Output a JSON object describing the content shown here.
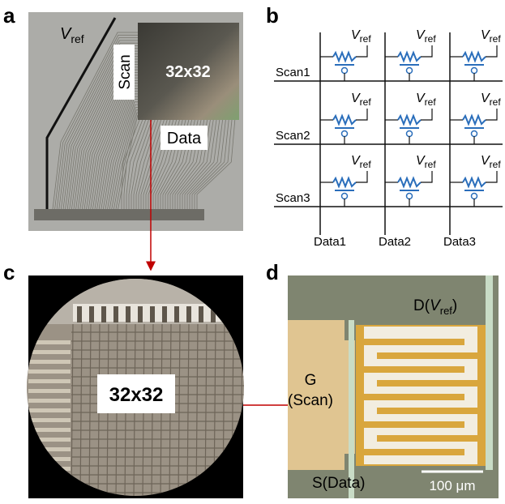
{
  "panels": {
    "a": {
      "label": "a",
      "vref": {
        "symbol": "V",
        "subscript": "ref"
      },
      "scan": "Scan",
      "array": "32x32",
      "data": "Data"
    },
    "b": {
      "label": "b",
      "scan_lines": [
        "Scan1",
        "Scan2",
        "Scan3"
      ],
      "data_lines": [
        "Data1",
        "Data2",
        "Data3"
      ],
      "cell_labels": [
        {
          "symbol": "V",
          "subscript": "ref"
        },
        {
          "symbol": "V",
          "subscript": "ref"
        },
        {
          "symbol": "V",
          "subscript": "ref"
        },
        {
          "symbol": "V",
          "subscript": "ref"
        },
        {
          "symbol": "V",
          "subscript": "ref"
        },
        {
          "symbol": "V",
          "subscript": "ref"
        },
        {
          "symbol": "V",
          "subscript": "ref"
        },
        {
          "symbol": "V",
          "subscript": "ref"
        },
        {
          "symbol": "V",
          "subscript": "ref"
        }
      ]
    },
    "c": {
      "label": "c",
      "array": "32x32"
    },
    "d": {
      "label": "d",
      "drain": {
        "prefix": "D(",
        "symbol": "V",
        "subscript": "ref",
        "suffix": ")"
      },
      "gate": [
        "G",
        "(Scan)"
      ],
      "source": "S(Data)",
      "scale_bar": "100 μm"
    }
  }
}
